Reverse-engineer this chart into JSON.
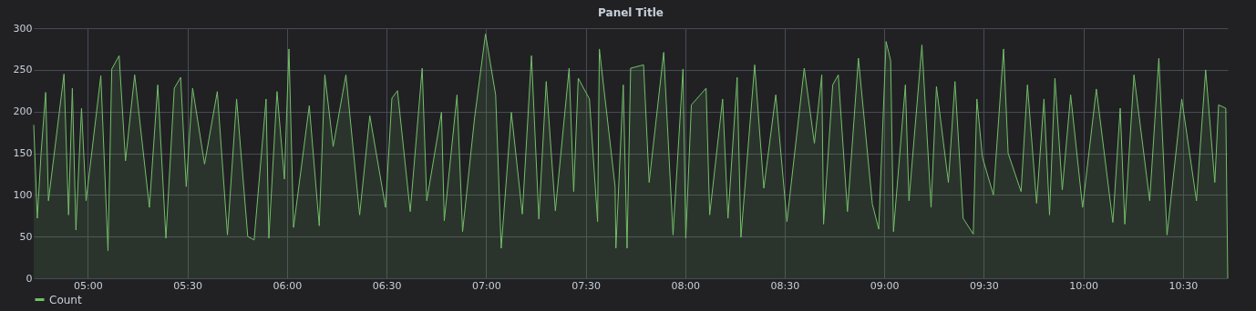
{
  "chart_data": {
    "type": "area",
    "title": "Panel Title",
    "x": [
      4.728,
      4.746,
      4.765,
      4.788,
      4.802,
      4.88,
      4.903,
      4.922,
      4.94,
      4.968,
      4.991,
      5.065,
      5.101,
      5.12,
      5.157,
      5.189,
      5.235,
      5.309,
      5.351,
      5.392,
      5.434,
      5.466,
      5.494,
      5.526,
      5.586,
      5.65,
      5.701,
      5.747,
      5.803,
      5.835,
      5.895,
      5.909,
      5.95,
      5.987,
      6.01,
      6.033,
      6.112,
      6.162,
      6.19,
      6.232,
      6.296,
      6.365,
      6.416,
      6.495,
      6.527,
      6.555,
      6.619,
      6.679,
      6.702,
      6.776,
      6.79,
      6.854,
      6.882,
      6.942,
      6.997,
      7.048,
      7.076,
      7.127,
      7.182,
      7.228,
      7.265,
      7.302,
      7.348,
      7.417,
      7.44,
      7.463,
      7.519,
      7.56,
      7.569,
      7.648,
      7.652,
      7.689,
      7.708,
      7.726,
      7.791,
      7.819,
      7.892,
      7.939,
      7.989,
      8.003,
      8.031,
      8.105,
      8.123,
      8.188,
      8.215,
      8.261,
      8.28,
      8.349,
      8.395,
      8.455,
      8.511,
      8.598,
      8.649,
      8.686,
      8.695,
      8.741,
      8.769,
      8.815,
      8.87,
      8.94,
      8.972,
      9.009,
      9.032,
      9.046,
      9.106,
      9.124,
      9.189,
      9.235,
      9.262,
      9.322,
      9.355,
      9.396,
      9.447,
      9.465,
      9.493,
      9.548,
      9.599,
      9.622,
      9.687,
      9.719,
      9.765,
      9.802,
      9.83,
      9.857,
      9.894,
      9.936,
      9.996,
      10.065,
      10.148,
      10.185,
      10.208,
      10.254,
      10.333,
      10.379,
      10.42,
      10.494,
      10.568,
      10.614,
      10.66,
      10.679,
      10.715,
      10.725
    ],
    "series": [
      {
        "name": "Count",
        "color": "#73bf69",
        "values": [
          184,
          72,
          150,
          223,
          93,
          245,
          76,
          228,
          58,
          204,
          93,
          243,
          33,
          251,
          267,
          141,
          244,
          85,
          232,
          48,
          228,
          241,
          110,
          228,
          137,
          224,
          52,
          215,
          50,
          46,
          215,
          48,
          224,
          119,
          275,
          61,
          207,
          63,
          244,
          158,
          244,
          76,
          195,
          85,
          216,
          225,
          80,
          252,
          93,
          199,
          69,
          220,
          56,
          192,
          293,
          220,
          36,
          199,
          77,
          267,
          71,
          236,
          81,
          252,
          104,
          240,
          215,
          68,
          275,
          110,
          36,
          232,
          36,
          252,
          256,
          115,
          271,
          52,
          251,
          48,
          208,
          228,
          76,
          215,
          72,
          241,
          49,
          256,
          108,
          220,
          68,
          252,
          162,
          244,
          65,
          232,
          244,
          80,
          264,
          89,
          59,
          284,
          261,
          56,
          232,
          93,
          280,
          85,
          230,
          115,
          236,
          72,
          53,
          215,
          145,
          100,
          275,
          150,
          104,
          232,
          90,
          215,
          76,
          240,
          106,
          220,
          85,
          227,
          67,
          204,
          65,
          244,
          93,
          264,
          52,
          215,
          93,
          250,
          115,
          208,
          204,
          0
        ]
      }
    ],
    "xlim": [
      4.728,
      10.725
    ],
    "xticks": [
      {
        "value": 5,
        "label": "05:00"
      },
      {
        "value": 5.5,
        "label": "05:30"
      },
      {
        "value": 6,
        "label": "06:00"
      },
      {
        "value": 6.5,
        "label": "06:30"
      },
      {
        "value": 7,
        "label": "07:00"
      },
      {
        "value": 7.5,
        "label": "07:30"
      },
      {
        "value": 8,
        "label": "08:00"
      },
      {
        "value": 8.5,
        "label": "08:30"
      },
      {
        "value": 9,
        "label": "09:00"
      },
      {
        "value": 9.5,
        "label": "09:30"
      },
      {
        "value": 10,
        "label": "10:00"
      },
      {
        "value": 10.5,
        "label": "10:30"
      }
    ],
    "ylim": [
      0,
      300
    ],
    "yticks": [
      0,
      50,
      100,
      150,
      200,
      250,
      300
    ],
    "grid": true,
    "legend": "bottom left"
  }
}
